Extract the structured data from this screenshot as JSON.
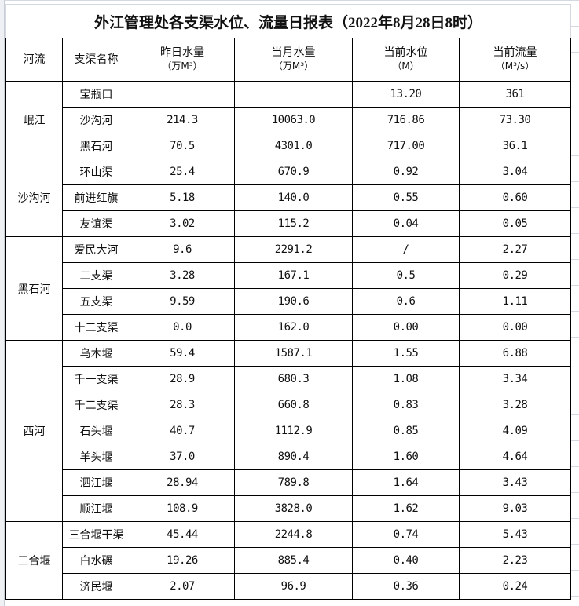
{
  "title": "外江管理处各支渠水位、流量日报表（2022年8月28日8时）",
  "headers": {
    "river": "河流",
    "branch": "支渠名称",
    "yesterday": "昨日水量",
    "yesterday_unit": "（万M³）",
    "month": "当月水量",
    "month_unit": "（万M³）",
    "level": "当前水位",
    "level_unit": "（M）",
    "flow": "当前流量",
    "flow_unit": "（M³/s）"
  },
  "groups": [
    {
      "river": "岷江",
      "rows": [
        {
          "branch": "宝瓶口",
          "yesterday": "",
          "month": "",
          "level": "13.20",
          "flow": "361"
        },
        {
          "branch": "沙沟河",
          "yesterday": "214.3",
          "month": "10063.0",
          "level": "716.86",
          "flow": "73.30"
        },
        {
          "branch": "黑石河",
          "yesterday": "70.5",
          "month": "4301.0",
          "level": "717.00",
          "flow": "36.1"
        }
      ]
    },
    {
      "river": "沙沟河",
      "rows": [
        {
          "branch": "环山渠",
          "yesterday": "25.4",
          "month": "670.9",
          "level": "0.92",
          "flow": "3.04"
        },
        {
          "branch": "前进红旗",
          "yesterday": "5.18",
          "month": "140.0",
          "level": "0.55",
          "flow": "0.60"
        },
        {
          "branch": "友谊渠",
          "yesterday": "3.02",
          "month": "115.2",
          "level": "0.04",
          "flow": "0.05"
        }
      ]
    },
    {
      "river": "黑石河",
      "rows": [
        {
          "branch": "爱民大河",
          "yesterday": "9.6",
          "month": "2291.2",
          "level": "/",
          "flow": "2.27"
        },
        {
          "branch": "二支渠",
          "yesterday": "3.28",
          "month": "167.1",
          "level": "0.5",
          "flow": "0.29"
        },
        {
          "branch": "五支渠",
          "yesterday": "9.59",
          "month": "190.6",
          "level": "0.6",
          "flow": "1.11"
        },
        {
          "branch": "十二支渠",
          "yesterday": "0.0",
          "month": "162.0",
          "level": "0.00",
          "flow": "0.00"
        }
      ]
    },
    {
      "river": "西河",
      "rows": [
        {
          "branch": "乌木堰",
          "yesterday": "59.4",
          "month": "1587.1",
          "level": "1.55",
          "flow": "6.88"
        },
        {
          "branch": "千一支渠",
          "yesterday": "28.9",
          "month": "680.3",
          "level": "1.08",
          "flow": "3.34"
        },
        {
          "branch": "千二支渠",
          "yesterday": "28.3",
          "month": "660.8",
          "level": "0.83",
          "flow": "3.28"
        },
        {
          "branch": "石头堰",
          "yesterday": "40.7",
          "month": "1112.9",
          "level": "0.85",
          "flow": "4.09"
        },
        {
          "branch": "羊头堰",
          "yesterday": "37.0",
          "month": "890.4",
          "level": "1.60",
          "flow": "4.64"
        },
        {
          "branch": "泗江堰",
          "yesterday": "28.94",
          "month": "789.8",
          "level": "1.64",
          "flow": "3.43"
        },
        {
          "branch": "顺江堰",
          "yesterday": "108.9",
          "month": "3828.0",
          "level": "1.62",
          "flow": "9.03"
        }
      ]
    },
    {
      "river": "三合堰",
      "rows": [
        {
          "branch": "三合堰干渠",
          "yesterday": "45.44",
          "month": "2244.8",
          "level": "0.74",
          "flow": "5.43"
        },
        {
          "branch": "白水碾",
          "yesterday": "19.26",
          "month": "885.4",
          "level": "0.40",
          "flow": "2.23"
        },
        {
          "branch": "济民堰",
          "yesterday": "2.07",
          "month": "96.9",
          "level": "0.36",
          "flow": "0.24"
        }
      ]
    }
  ]
}
